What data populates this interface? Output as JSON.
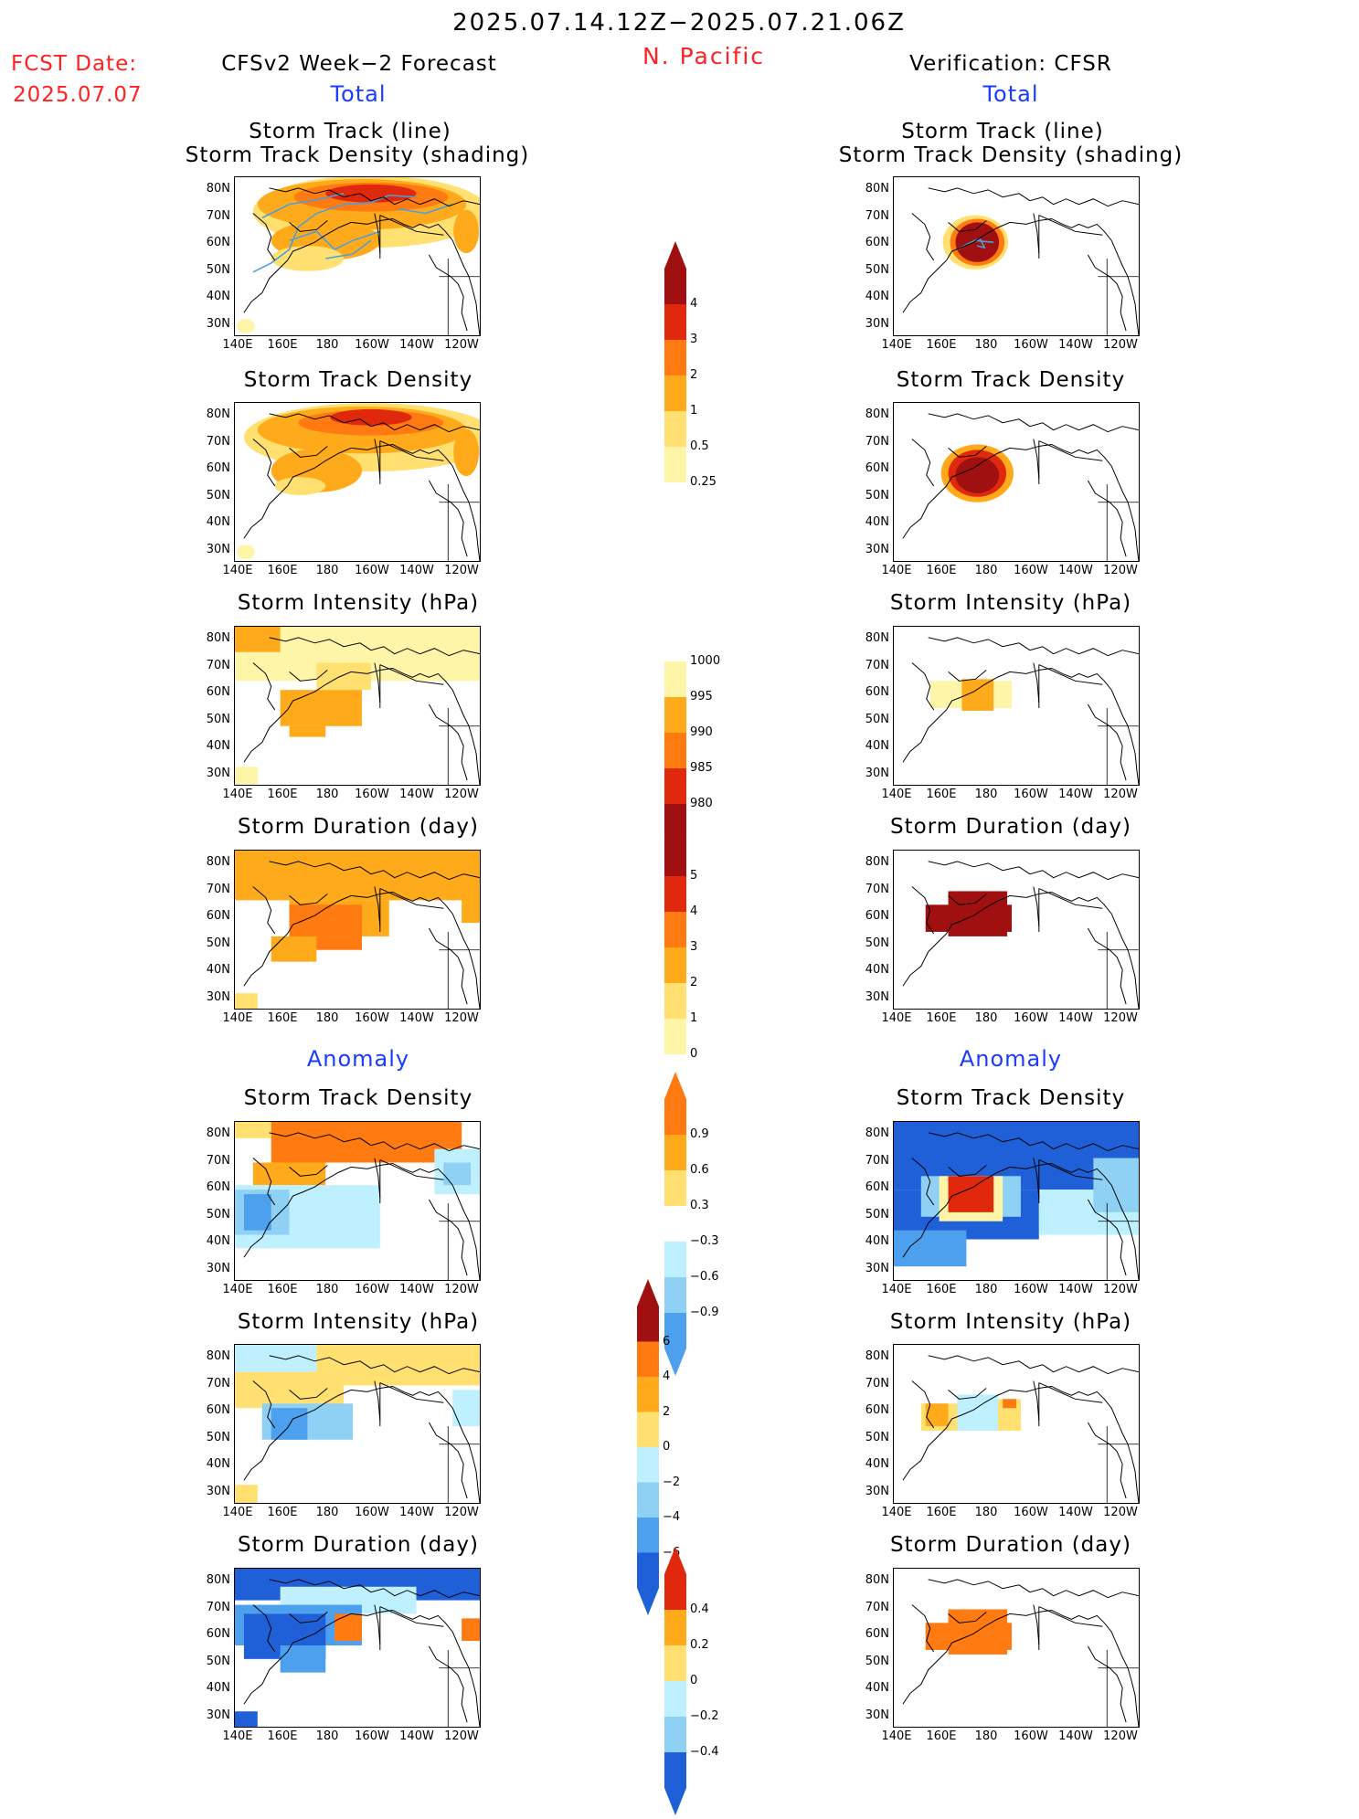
{
  "header": {
    "date_range": "2025.07.14.12Z−2025.07.21.06Z",
    "region": "N. Pacific",
    "fcst_label": "FCST Date:",
    "fcst_date": "2025.07.07",
    "left_title": "CFSv2 Week−2 Forecast",
    "right_title": "Verification: CFSR",
    "total_label": "Total",
    "anomaly_label": "Anomaly"
  },
  "panel_titles": {
    "track_line": "Storm Track (line)",
    "track_shading": "Storm Track Density (shading)",
    "density": "Storm Track Density",
    "intensity": "Storm Intensity (hPa)",
    "duration": "Storm Duration (day)"
  },
  "axes": {
    "lat_labels": [
      "80N",
      "70N",
      "60N",
      "50N",
      "40N",
      "30N"
    ],
    "lon_labels": [
      "140E",
      "160E",
      "180",
      "160W",
      "140W",
      "120W"
    ]
  },
  "colorbars": {
    "density": [
      "4",
      "3",
      "2",
      "1",
      "0.5",
      "0.25"
    ],
    "intensity": [
      "1000",
      "995",
      "990",
      "985",
      "980"
    ],
    "duration": [
      "5",
      "4",
      "3",
      "2",
      "1",
      "0"
    ],
    "density_anom": [
      "0.9",
      "0.6",
      "0.3",
      "−0.3",
      "−0.6",
      "−0.9"
    ],
    "intensity_anom": [
      "6",
      "4",
      "2",
      "0",
      "−2",
      "−4",
      "−6"
    ],
    "duration_anom": [
      "0.4",
      "0.2",
      "0",
      "−0.2",
      "−0.4"
    ]
  },
  "colors": {
    "text_red": "#ff2222",
    "text_blue": "#1a3cff",
    "warm": [
      "#fff5a8",
      "#ffe070",
      "#ffaa1a",
      "#ff7a10",
      "#e0280c",
      "#a01010"
    ],
    "cool": [
      "#bff0ff",
      "#8fd0f5",
      "#4da0ee",
      "#1f60d8"
    ]
  }
}
